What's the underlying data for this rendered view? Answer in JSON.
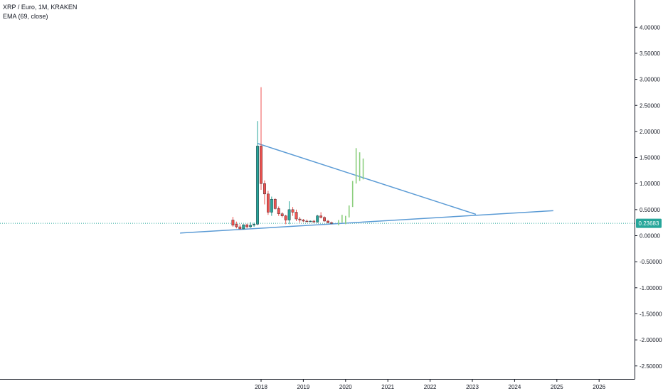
{
  "header": {
    "symbol_title": "XRP / Euro, 1M, KRAKEN",
    "indicator_label": "EMA (69, close)"
  },
  "colors": {
    "up_candle": "#26a69a",
    "down_candle": "#ef5350",
    "projection_candle": "#8ccf7e",
    "trendline": "#5b9bd5",
    "price_line": "#26a69a",
    "axis": "#131722"
  },
  "price_badge": "0.23683",
  "chart_data": {
    "type": "candlestick",
    "title": "XRP / Euro, 1M, KRAKEN",
    "xlabel": "",
    "ylabel": "",
    "ylim": [
      -2.5,
      4.0
    ],
    "x_ticks": [
      "2018",
      "2019",
      "2020",
      "2021",
      "2022",
      "2023",
      "2024",
      "2025",
      "2026"
    ],
    "y_ticks": [
      "4.00000",
      "3.50000",
      "3.00000",
      "2.50000",
      "2.00000",
      "1.50000",
      "1.00000",
      "0.50000",
      "0.00000",
      "-0.50000",
      "-1.00000",
      "-1.50000",
      "-2.00000",
      "-2.50000"
    ],
    "last_price": 0.23683,
    "candles": [
      {
        "date": "2017-05",
        "open": 0.3,
        "high": 0.36,
        "low": 0.17,
        "close": 0.2
      },
      {
        "date": "2017-06",
        "open": 0.22,
        "high": 0.27,
        "low": 0.14,
        "close": 0.17
      },
      {
        "date": "2017-07",
        "open": 0.17,
        "high": 0.22,
        "low": 0.12,
        "close": 0.13
      },
      {
        "date": "2017-08",
        "open": 0.13,
        "high": 0.22,
        "low": 0.12,
        "close": 0.21
      },
      {
        "date": "2017-09",
        "open": 0.21,
        "high": 0.23,
        "low": 0.14,
        "close": 0.17
      },
      {
        "date": "2017-10",
        "open": 0.17,
        "high": 0.26,
        "low": 0.15,
        "close": 0.2
      },
      {
        "date": "2017-11",
        "open": 0.2,
        "high": 0.25,
        "low": 0.17,
        "close": 0.22
      },
      {
        "date": "2017-12",
        "open": 0.22,
        "high": 2.2,
        "low": 0.2,
        "close": 1.72
      },
      {
        "date": "2018-01",
        "open": 1.72,
        "high": 2.85,
        "low": 0.88,
        "close": 1.0
      },
      {
        "date": "2018-02",
        "open": 1.0,
        "high": 1.06,
        "low": 0.6,
        "close": 0.8
      },
      {
        "date": "2018-03",
        "open": 0.8,
        "high": 0.86,
        "low": 0.4,
        "close": 0.45
      },
      {
        "date": "2018-04",
        "open": 0.45,
        "high": 0.75,
        "low": 0.38,
        "close": 0.7
      },
      {
        "date": "2018-05",
        "open": 0.7,
        "high": 0.72,
        "low": 0.5,
        "close": 0.52
      },
      {
        "date": "2018-06",
        "open": 0.52,
        "high": 0.56,
        "low": 0.38,
        "close": 0.42
      },
      {
        "date": "2018-07",
        "open": 0.42,
        "high": 0.45,
        "low": 0.35,
        "close": 0.38
      },
      {
        "date": "2018-08",
        "open": 0.38,
        "high": 0.4,
        "low": 0.22,
        "close": 0.3
      },
      {
        "date": "2018-09",
        "open": 0.3,
        "high": 0.66,
        "low": 0.22,
        "close": 0.5
      },
      {
        "date": "2018-10",
        "open": 0.5,
        "high": 0.55,
        "low": 0.38,
        "close": 0.45
      },
      {
        "date": "2018-11",
        "open": 0.45,
        "high": 0.5,
        "low": 0.28,
        "close": 0.32
      },
      {
        "date": "2018-12",
        "open": 0.32,
        "high": 0.36,
        "low": 0.25,
        "close": 0.3
      },
      {
        "date": "2019-01",
        "open": 0.3,
        "high": 0.32,
        "low": 0.26,
        "close": 0.28
      },
      {
        "date": "2019-02",
        "open": 0.28,
        "high": 0.31,
        "low": 0.26,
        "close": 0.27
      },
      {
        "date": "2019-03",
        "open": 0.27,
        "high": 0.29,
        "low": 0.26,
        "close": 0.28
      },
      {
        "date": "2019-04",
        "open": 0.28,
        "high": 0.3,
        "low": 0.25,
        "close": 0.26
      },
      {
        "date": "2019-05",
        "open": 0.26,
        "high": 0.4,
        "low": 0.25,
        "close": 0.38
      },
      {
        "date": "2019-06",
        "open": 0.38,
        "high": 0.45,
        "low": 0.33,
        "close": 0.35
      },
      {
        "date": "2019-07",
        "open": 0.35,
        "high": 0.37,
        "low": 0.27,
        "close": 0.28
      },
      {
        "date": "2019-08",
        "open": 0.28,
        "high": 0.3,
        "low": 0.24,
        "close": 0.25
      },
      {
        "date": "2019-09",
        "open": 0.25,
        "high": 0.27,
        "low": 0.22,
        "close": 0.24
      }
    ],
    "projection": [
      {
        "date": "2019-11",
        "high": 0.3,
        "low": 0.2
      },
      {
        "date": "2019-12",
        "high": 0.4,
        "low": 0.25
      },
      {
        "date": "2020-01",
        "high": 0.38,
        "low": 0.22
      },
      {
        "date": "2020-02",
        "high": 0.58,
        "low": 0.35
      },
      {
        "date": "2020-03",
        "high": 1.05,
        "low": 0.55
      },
      {
        "date": "2020-04",
        "high": 1.68,
        "low": 1.0
      },
      {
        "date": "2020-05",
        "high": 1.6,
        "low": 1.05
      },
      {
        "date": "2020-06",
        "high": 1.48,
        "low": 1.08
      }
    ],
    "trendlines": [
      {
        "from": {
          "date": "2016-02",
          "price": 0.05
        },
        "to": {
          "date": "2024-12",
          "price": 0.48
        }
      },
      {
        "from": {
          "date": "2017-12",
          "price": 1.77
        },
        "to": {
          "date": "2023-02",
          "price": 0.41
        }
      }
    ],
    "grid": false,
    "legend": "top-left"
  }
}
